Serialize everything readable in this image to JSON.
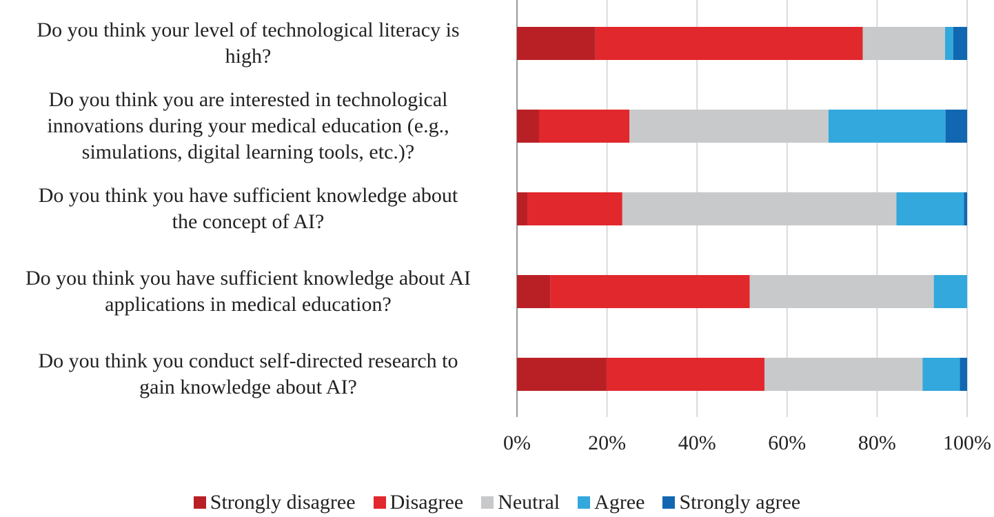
{
  "chart_data": {
    "type": "bar",
    "orientation": "horizontal",
    "stacked": true,
    "percent": true,
    "categories": [
      "Do you think your level of technological literacy is high?",
      "Do you think you are interested in technological innovations during your medical education (e.g., simulations, digital learning tools, etc.)?",
      "Do you think you have sufficient knowledge about the concept of AI?",
      "Do you think you have sufficient knowledge about AI applications in medical education?",
      "Do you think you conduct self-directed research to gain knowledge about AI?"
    ],
    "category_lines": [
      [
        "Do you think your level of technological literacy is",
        "high?"
      ],
      [
        "Do you think you are interested in technological",
        "innovations during your medical education (e.g.,",
        "simulations, digital learning tools, etc.)?"
      ],
      [
        "Do you think you have sufficient knowledge about",
        "the concept of AI?"
      ],
      [
        "Do you think you have sufficient knowledge about AI",
        "applications in medical education?"
      ],
      [
        "Do you think you conduct self-directed research to",
        "gain knowledge about AI?"
      ]
    ],
    "series": [
      {
        "name": "Strongly disagree",
        "color": "#b92025",
        "values": [
          17.4,
          4.9,
          2.3,
          7.4,
          19.9
        ]
      },
      {
        "name": "Disagree",
        "color": "#e1282d",
        "values": [
          59.4,
          20.1,
          21.1,
          44.3,
          35.1
        ]
      },
      {
        "name": "Neutral",
        "color": "#c8c9ca",
        "values": [
          18.3,
          44.2,
          60.9,
          40.9,
          35.1
        ]
      },
      {
        "name": "Agree",
        "color": "#33a8dc",
        "values": [
          1.8,
          26.0,
          15.0,
          7.4,
          8.3
        ]
      },
      {
        "name": "Strongly agree",
        "color": "#1167b1",
        "values": [
          3.1,
          4.8,
          0.7,
          0.0,
          1.6
        ]
      }
    ],
    "xlim": [
      0,
      100
    ],
    "x_ticks": [
      "0%",
      "20%",
      "40%",
      "60%",
      "80%",
      "100%"
    ],
    "grid": true,
    "legend_position": "bottom"
  }
}
